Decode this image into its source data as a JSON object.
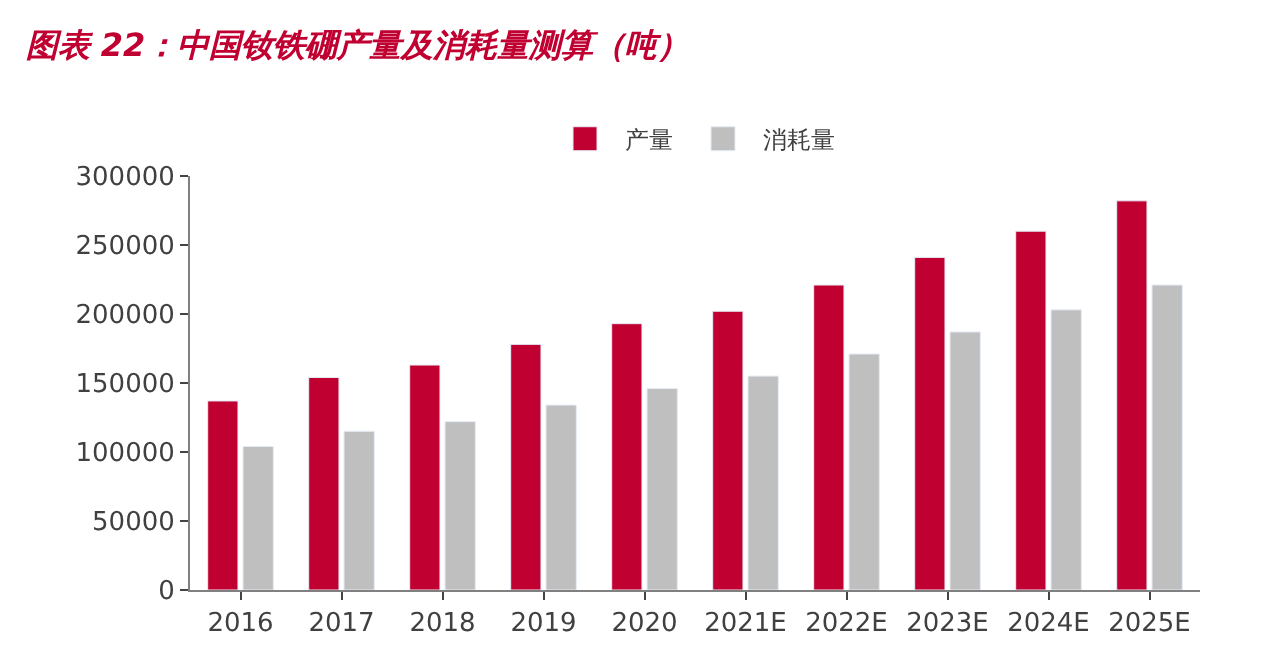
{
  "chart_data": {
    "type": "bar",
    "title": "图表 22：中国钕铁硼产量及消耗量测算（吨）",
    "categories": [
      "2016",
      "2017",
      "2018",
      "2019",
      "2020",
      "2021E",
      "2022E",
      "2023E",
      "2024E",
      "2025E"
    ],
    "series": [
      {
        "name": "产量",
        "color": "#c00030",
        "values": [
          137000,
          154000,
          163000,
          178000,
          193000,
          202000,
          221000,
          241000,
          260000,
          282000
        ]
      },
      {
        "name": "消耗量",
        "color": "#bfbfbf",
        "values": [
          104000,
          115000,
          122000,
          134000,
          146000,
          155000,
          171000,
          187000,
          203000,
          221000
        ]
      }
    ],
    "ylim": [
      0,
      300000
    ],
    "yticks": [
      0,
      50000,
      100000,
      150000,
      200000,
      250000,
      300000
    ],
    "legend": "top"
  }
}
